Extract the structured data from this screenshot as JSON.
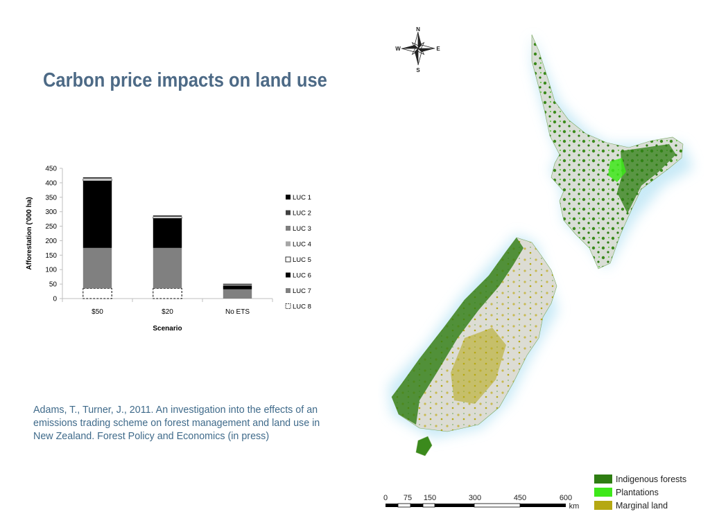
{
  "slide": {
    "title": "Carbon price impacts on land use",
    "citation": "Adams, T., Turner, J., 2011. An investigation into the effects of an emissions trading scheme on forest management and land use in New Zealand. Forest Policy and Economics (in press)"
  },
  "chart_data": {
    "type": "bar",
    "stacked": true,
    "xlabel": "Scenario",
    "ylabel": "Afforestation ('000 ha)",
    "ylim": [
      0,
      450
    ],
    "yticks": [
      0,
      50,
      100,
      150,
      200,
      250,
      300,
      350,
      400,
      450
    ],
    "categories": [
      "$50",
      "$20",
      "No ETS"
    ],
    "series": [
      {
        "name": "LUC 8",
        "values": [
          35,
          35,
          0
        ],
        "color": "#ffffff",
        "pattern": "dashed"
      },
      {
        "name": "LUC 7",
        "values": [
          140,
          140,
          32
        ],
        "color": "#808080"
      },
      {
        "name": "LUC 6",
        "values": [
          232,
          102,
          13
        ],
        "color": "#000000"
      },
      {
        "name": "LUC 5",
        "values": [
          6,
          5,
          0
        ],
        "color": "#ffffff"
      },
      {
        "name": "LUC 4",
        "values": [
          2,
          1,
          3
        ],
        "color": "#a6a6a6"
      },
      {
        "name": "LUC 3",
        "values": [
          1,
          1,
          1
        ],
        "color": "#7f7f7f"
      },
      {
        "name": "LUC 2",
        "values": [
          1,
          1,
          0
        ],
        "color": "#404040"
      },
      {
        "name": "LUC 1",
        "values": [
          2,
          2,
          2
        ],
        "color": "#000000"
      }
    ],
    "legend": [
      "LUC 1",
      "LUC 2",
      "LUC 3",
      "LUC 4",
      "LUC 5",
      "LUC 6",
      "LUC 7",
      "LUC 8"
    ],
    "legend_position": "right"
  },
  "map": {
    "compass": {
      "n": "N",
      "s": "S",
      "e": "E",
      "w": "W"
    },
    "legend": [
      {
        "label": "Indigenous forests",
        "color": "#2e7d12"
      },
      {
        "label": "Plantations",
        "color": "#3ee81a"
      },
      {
        "label": "Marginal land",
        "color": "#b5a813"
      }
    ],
    "scale": {
      "ticks": [
        "0",
        "75",
        "150",
        "300",
        "450",
        "600"
      ],
      "unit": "km"
    }
  }
}
